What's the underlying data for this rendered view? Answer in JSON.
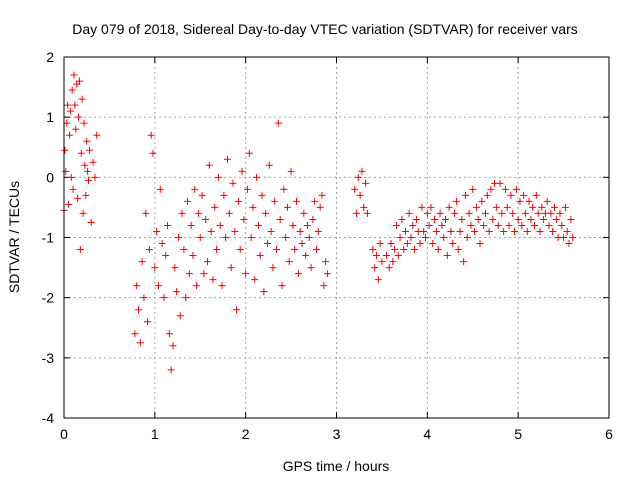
{
  "chart_data": {
    "type": "scatter",
    "title": "Day 079 of 2018, Sidereal Day-to-day VTEC variation (SDTVAR) for receiver vars",
    "xlabel": "GPS time / hours",
    "ylabel": "SDTVAR / TECUs",
    "xlim": [
      0,
      6
    ],
    "ylim": [
      -4,
      2
    ],
    "xticks": [
      0,
      1,
      2,
      3,
      4,
      5,
      6
    ],
    "yticks": [
      -4,
      -3,
      -2,
      -1,
      0,
      1,
      2
    ],
    "grid": true,
    "marker": "+",
    "marker_color": "#ff0000",
    "series": [
      {
        "name": "SDTVAR",
        "points": [
          [
            0.0,
            -0.55
          ],
          [
            0.01,
            0.45
          ],
          [
            0.02,
            0.1
          ],
          [
            0.03,
            0.9
          ],
          [
            0.04,
            1.2
          ],
          [
            0.05,
            -0.45
          ],
          [
            0.06,
            0.7
          ],
          [
            0.07,
            1.1
          ],
          [
            0.08,
            0.0
          ],
          [
            0.09,
            1.45
          ],
          [
            0.1,
            -0.2
          ],
          [
            0.11,
            1.7
          ],
          [
            0.12,
            1.2
          ],
          [
            0.13,
            0.8
          ],
          [
            0.14,
            1.55
          ],
          [
            0.15,
            -0.35
          ],
          [
            0.16,
            1.0
          ],
          [
            0.17,
            1.6
          ],
          [
            0.18,
            -1.2
          ],
          [
            0.19,
            0.4
          ],
          [
            0.2,
            1.3
          ],
          [
            0.21,
            -0.6
          ],
          [
            0.22,
            0.9
          ],
          [
            0.23,
            0.2
          ],
          [
            0.24,
            -0.3
          ],
          [
            0.25,
            0.6
          ],
          [
            0.26,
            0.1
          ],
          [
            0.27,
            -0.05
          ],
          [
            0.28,
            0.45
          ],
          [
            0.3,
            -0.75
          ],
          [
            0.32,
            0.25
          ],
          [
            0.34,
            0.0
          ],
          [
            0.36,
            0.7
          ],
          [
            0.78,
            -2.6
          ],
          [
            0.8,
            -1.8
          ],
          [
            0.82,
            -2.2
          ],
          [
            0.84,
            -2.75
          ],
          [
            0.86,
            -1.4
          ],
          [
            0.88,
            -2.0
          ],
          [
            0.9,
            -0.6
          ],
          [
            0.92,
            -2.4
          ],
          [
            0.94,
            -1.2
          ],
          [
            0.96,
            0.7
          ],
          [
            0.98,
            0.4
          ],
          [
            1.0,
            -1.5
          ],
          [
            1.02,
            -0.9
          ],
          [
            1.04,
            -1.8
          ],
          [
            1.06,
            -0.2
          ],
          [
            1.08,
            -1.1
          ],
          [
            1.1,
            -2.0
          ],
          [
            1.12,
            -1.3
          ],
          [
            1.14,
            -0.8
          ],
          [
            1.16,
            -2.6
          ],
          [
            1.18,
            -3.2
          ],
          [
            1.2,
            -2.8
          ],
          [
            1.22,
            -1.5
          ],
          [
            1.24,
            -1.9
          ],
          [
            1.26,
            -1.0
          ],
          [
            1.28,
            -2.3
          ],
          [
            1.3,
            -0.6
          ],
          [
            1.32,
            -1.2
          ],
          [
            1.34,
            -2.0
          ],
          [
            1.36,
            -0.4
          ],
          [
            1.38,
            -1.6
          ],
          [
            1.4,
            -0.8
          ],
          [
            1.42,
            -1.3
          ],
          [
            1.44,
            -0.2
          ],
          [
            1.46,
            -1.8
          ],
          [
            1.48,
            -0.6
          ],
          [
            1.5,
            -1.0
          ],
          [
            1.52,
            -0.3
          ],
          [
            1.54,
            -1.6
          ],
          [
            1.56,
            -0.7
          ],
          [
            1.58,
            -1.4
          ],
          [
            1.6,
            0.2
          ],
          [
            1.62,
            -0.9
          ],
          [
            1.64,
            -1.7
          ],
          [
            1.66,
            -0.5
          ],
          [
            1.68,
            -1.2
          ],
          [
            1.7,
            0.0
          ],
          [
            1.72,
            -0.8
          ],
          [
            1.74,
            -1.8
          ],
          [
            1.76,
            -0.3
          ],
          [
            1.78,
            -1.0
          ],
          [
            1.8,
            0.3
          ],
          [
            1.82,
            -0.6
          ],
          [
            1.84,
            -1.5
          ],
          [
            1.86,
            -0.1
          ],
          [
            1.88,
            -0.9
          ],
          [
            1.9,
            -2.2
          ],
          [
            1.92,
            -0.4
          ],
          [
            1.94,
            -1.2
          ],
          [
            1.96,
            0.1
          ],
          [
            1.98,
            -0.7
          ],
          [
            2.0,
            -1.6
          ],
          [
            2.02,
            -0.2
          ],
          [
            2.04,
            0.4
          ],
          [
            2.06,
            -1.0
          ],
          [
            2.08,
            -0.5
          ],
          [
            2.1,
            -1.7
          ],
          [
            2.12,
            0.0
          ],
          [
            2.14,
            -0.8
          ],
          [
            2.16,
            -1.3
          ],
          [
            2.18,
            -0.3
          ],
          [
            2.2,
            -1.9
          ],
          [
            2.22,
            -0.6
          ],
          [
            2.24,
            -1.1
          ],
          [
            2.26,
            0.2
          ],
          [
            2.28,
            -0.9
          ],
          [
            2.3,
            -1.5
          ],
          [
            2.32,
            -0.4
          ],
          [
            2.34,
            -1.2
          ],
          [
            2.36,
            0.9
          ],
          [
            2.38,
            -0.7
          ],
          [
            2.4,
            -1.8
          ],
          [
            2.42,
            -0.2
          ],
          [
            2.44,
            -1.0
          ],
          [
            2.46,
            -0.5
          ],
          [
            2.48,
            -1.4
          ],
          [
            2.5,
            0.1
          ],
          [
            2.52,
            -0.8
          ],
          [
            2.54,
            -1.2
          ],
          [
            2.56,
            -0.4
          ],
          [
            2.58,
            -1.6
          ],
          [
            2.6,
            -0.9
          ],
          [
            2.62,
            -1.1
          ],
          [
            2.64,
            -0.6
          ],
          [
            2.66,
            -1.3
          ],
          [
            2.68,
            -0.8
          ],
          [
            2.7,
            -1.0
          ],
          [
            2.72,
            -1.5
          ],
          [
            2.74,
            -0.7
          ],
          [
            2.76,
            -0.4
          ],
          [
            2.78,
            -1.2
          ],
          [
            2.8,
            -0.9
          ],
          [
            2.82,
            -0.5
          ],
          [
            2.84,
            -0.3
          ],
          [
            2.86,
            -1.8
          ],
          [
            2.88,
            -1.4
          ],
          [
            2.9,
            -1.6
          ],
          [
            3.2,
            -0.2
          ],
          [
            3.22,
            -0.6
          ],
          [
            3.24,
            0.0
          ],
          [
            3.26,
            -0.3
          ],
          [
            3.28,
            0.1
          ],
          [
            3.3,
            -0.5
          ],
          [
            3.32,
            -0.1
          ],
          [
            3.34,
            -0.6
          ],
          [
            3.4,
            -1.2
          ],
          [
            3.42,
            -1.5
          ],
          [
            3.44,
            -1.3
          ],
          [
            3.46,
            -1.7
          ],
          [
            3.48,
            -1.1
          ],
          [
            3.5,
            -1.4
          ],
          [
            3.55,
            -1.3
          ],
          [
            3.58,
            -1.5
          ],
          [
            3.6,
            -1.1
          ],
          [
            3.62,
            -1.4
          ],
          [
            3.64,
            -1.2
          ],
          [
            3.66,
            -0.8
          ],
          [
            3.68,
            -1.3
          ],
          [
            3.7,
            -1.0
          ],
          [
            3.72,
            -0.7
          ],
          [
            3.74,
            -1.2
          ],
          [
            3.76,
            -0.9
          ],
          [
            3.78,
            -1.1
          ],
          [
            3.8,
            -0.6
          ],
          [
            3.82,
            -1.0
          ],
          [
            3.84,
            -0.8
          ],
          [
            3.86,
            -1.2
          ],
          [
            3.88,
            -0.7
          ],
          [
            3.9,
            -0.9
          ],
          [
            3.92,
            -1.1
          ],
          [
            3.94,
            -0.5
          ],
          [
            3.96,
            -0.9
          ],
          [
            3.98,
            -1.0
          ],
          [
            4.0,
            -0.6
          ],
          [
            4.02,
            -0.8
          ],
          [
            4.04,
            -0.5
          ],
          [
            4.06,
            -1.1
          ],
          [
            4.08,
            -0.7
          ],
          [
            4.1,
            -0.9
          ],
          [
            4.12,
            -1.2
          ],
          [
            4.14,
            -0.6
          ],
          [
            4.16,
            -0.8
          ],
          [
            4.18,
            -1.0
          ],
          [
            4.2,
            -0.7
          ],
          [
            4.22,
            -1.3
          ],
          [
            4.24,
            -0.5
          ],
          [
            4.26,
            -0.9
          ],
          [
            4.28,
            -1.1
          ],
          [
            4.3,
            -0.6
          ],
          [
            4.32,
            -0.4
          ],
          [
            4.34,
            -1.2
          ],
          [
            4.36,
            -0.9
          ],
          [
            4.38,
            -0.7
          ],
          [
            4.4,
            -1.4
          ],
          [
            4.42,
            -0.3
          ],
          [
            4.44,
            -1.0
          ],
          [
            4.46,
            -0.6
          ],
          [
            4.48,
            -0.8
          ],
          [
            4.5,
            -0.2
          ],
          [
            4.52,
            -0.9
          ],
          [
            4.54,
            -0.5
          ],
          [
            4.56,
            -0.7
          ],
          [
            4.58,
            -1.1
          ],
          [
            4.6,
            -0.4
          ],
          [
            4.62,
            -0.8
          ],
          [
            4.64,
            -0.6
          ],
          [
            4.66,
            -0.3
          ],
          [
            4.68,
            -0.9
          ],
          [
            4.7,
            -0.2
          ],
          [
            4.72,
            -0.7
          ],
          [
            4.74,
            -0.1
          ],
          [
            4.76,
            -0.5
          ],
          [
            4.78,
            -0.8
          ],
          [
            4.8,
            -0.1
          ],
          [
            4.82,
            -0.6
          ],
          [
            4.84,
            -0.9
          ],
          [
            4.86,
            -0.2
          ],
          [
            4.88,
            -0.5
          ],
          [
            4.9,
            -0.8
          ],
          [
            4.92,
            -0.3
          ],
          [
            4.94,
            -0.6
          ],
          [
            4.96,
            -0.9
          ],
          [
            4.98,
            -0.2
          ],
          [
            5.0,
            -0.7
          ],
          [
            5.02,
            -0.4
          ],
          [
            5.04,
            -0.8
          ],
          [
            5.06,
            -0.3
          ],
          [
            5.08,
            -0.6
          ],
          [
            5.1,
            -0.9
          ],
          [
            5.12,
            -0.4
          ],
          [
            5.14,
            -0.7
          ],
          [
            5.16,
            -0.5
          ],
          [
            5.18,
            -0.8
          ],
          [
            5.2,
            -0.3
          ],
          [
            5.22,
            -0.6
          ],
          [
            5.24,
            -0.9
          ],
          [
            5.26,
            -0.5
          ],
          [
            5.28,
            -0.7
          ],
          [
            5.3,
            -0.6
          ],
          [
            5.32,
            -0.4
          ],
          [
            5.34,
            -0.8
          ],
          [
            5.36,
            -0.6
          ],
          [
            5.38,
            -0.9
          ],
          [
            5.4,
            -0.5
          ],
          [
            5.42,
            -0.7
          ],
          [
            5.44,
            -1.0
          ],
          [
            5.46,
            -0.6
          ],
          [
            5.48,
            -0.8
          ],
          [
            5.5,
            -1.0
          ],
          [
            5.52,
            -0.5
          ],
          [
            5.54,
            -0.9
          ],
          [
            5.56,
            -1.1
          ],
          [
            5.58,
            -0.7
          ],
          [
            5.6,
            -1.0
          ]
        ]
      }
    ]
  }
}
